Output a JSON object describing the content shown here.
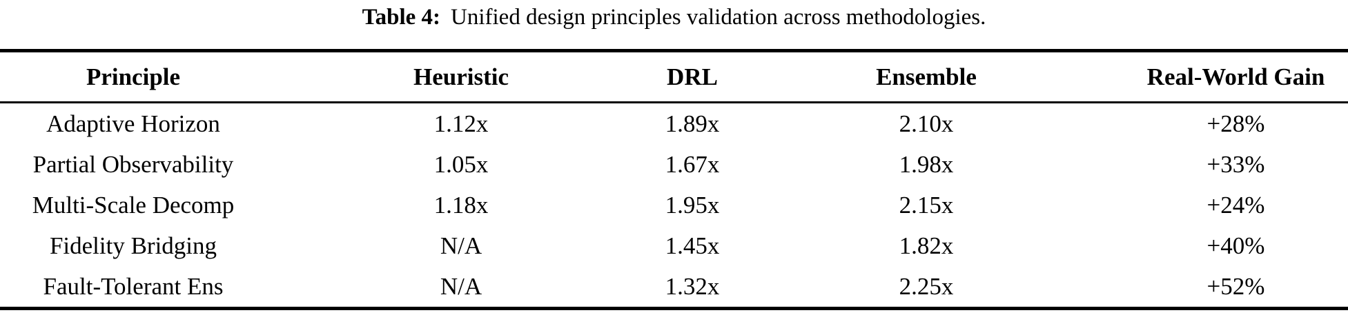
{
  "caption": {
    "label": "Table 4:",
    "text": "Unified design principles validation across methodologies."
  },
  "table": {
    "headers": [
      "Principle",
      "Heuristic",
      "DRL",
      "Ensemble",
      "Real-World Gain"
    ],
    "rows": [
      [
        "Adaptive Horizon",
        "1.12x",
        "1.89x",
        "2.10x",
        "+28%"
      ],
      [
        "Partial Observability",
        "1.05x",
        "1.67x",
        "1.98x",
        "+33%"
      ],
      [
        "Multi-Scale Decomp",
        "1.18x",
        "1.95x",
        "2.15x",
        "+24%"
      ],
      [
        "Fidelity Bridging",
        "N/A",
        "1.45x",
        "1.82x",
        "+40%"
      ],
      [
        "Fault-Tolerant Ens",
        "N/A",
        "1.32x",
        "2.25x",
        "+52%"
      ]
    ]
  },
  "colors": {
    "text": "#000000",
    "background": "#ffffff",
    "rule": "#000000"
  }
}
